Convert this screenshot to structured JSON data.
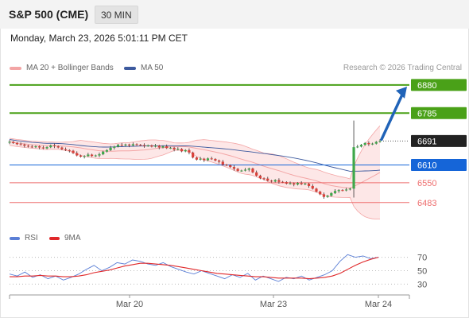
{
  "header": {
    "title": "S&P 500 (CME)",
    "timeframe": "30 MIN",
    "datetime": "Monday, March 23, 2026 5:01:11 PM CET"
  },
  "legend": {
    "bollinger_label": "MA 20 + Bollinger Bands",
    "ma50_label": "MA 50",
    "credit": "Research © 2026 Trading Central",
    "rsi_label": "RSI",
    "rsi_ma_label": "9MA"
  },
  "colors": {
    "candle_up": "#3fa84a",
    "candle_down": "#d9413a",
    "bollinger": "#f3a5a5",
    "bollinger_fill": "#fde7e7",
    "ma50": "#3d5a9e",
    "resistance": "#4aa118",
    "pivot": "#1565d8",
    "support": "#ee6e6e",
    "current": "#222222",
    "arrow": "#2063b8",
    "rsi": "#5b7fd6",
    "rsi_ma": "#e0282a"
  },
  "chart_data": [
    {
      "type": "line",
      "title": "S&P 500 (CME) 30 MIN",
      "x_ticks": [
        "Mar 20",
        "Mar 23",
        "Mar 24"
      ],
      "price_levels": [
        {
          "label": "6880",
          "value": 6880,
          "kind": "resistance"
        },
        {
          "label": "6785",
          "value": 6785,
          "kind": "resistance"
        },
        {
          "label": "6691",
          "value": 6691,
          "kind": "current"
        },
        {
          "label": "6610",
          "value": 6610,
          "kind": "pivot"
        },
        {
          "label": "6550",
          "value": 6550,
          "kind": "support"
        },
        {
          "label": "6483",
          "value": 6483,
          "kind": "support"
        }
      ],
      "series": [
        {
          "name": "MA 20 + Bollinger Bands",
          "values": []
        },
        {
          "name": "MA 50",
          "values": []
        }
      ],
      "close": [
        6688,
        6684,
        6680,
        6679,
        6675,
        6672,
        6670,
        6673,
        6669,
        6666,
        6670,
        6676,
        6673,
        6669,
        6663,
        6660,
        6658,
        6650,
        6642,
        6638,
        6640,
        6645,
        6640,
        6642,
        6646,
        6655,
        6660,
        6668,
        6672,
        6678,
        6676,
        6679,
        6676,
        6680,
        6678,
        6677,
        6674,
        6676,
        6672,
        6675,
        6669,
        6673,
        6667,
        6668,
        6662,
        6664,
        6656,
        6660,
        6652,
        6635,
        6628,
        6631,
        6626,
        6632,
        6630,
        6625,
        6621,
        6611,
        6609,
        6603,
        6597,
        6590,
        6591,
        6594,
        6598,
        6585,
        6574,
        6565,
        6564,
        6557,
        6554,
        6559,
        6553,
        6552,
        6547,
        6548,
        6544,
        6549,
        6545,
        6547,
        6539,
        6530,
        6520,
        6511,
        6502,
        6506,
        6515,
        6522,
        6525,
        6524,
        6527,
        6530,
        6670,
        6672,
        6678,
        6684,
        6680,
        6682,
        6688,
        6691
      ],
      "ylim": [
        6410,
        6920
      ]
    },
    {
      "type": "line",
      "title": "RSI",
      "yticks": [
        70,
        50,
        30
      ],
      "ylim": [
        15,
        85
      ],
      "series": [
        {
          "name": "RSI",
          "values": [
            45,
            42,
            48,
            40,
            44,
            38,
            42,
            36,
            40,
            45,
            52,
            58,
            50,
            55,
            62,
            60,
            66,
            64,
            60,
            58,
            62,
            56,
            52,
            48,
            45,
            50,
            46,
            42,
            38,
            44,
            40,
            46,
            36,
            42,
            38,
            34,
            40,
            38,
            42,
            36,
            40,
            44,
            50,
            64,
            74,
            70,
            72,
            68,
            70
          ]
        },
        {
          "name": "9MA",
          "values": [
            41,
            41,
            42,
            42,
            43,
            42,
            42,
            41,
            41,
            42,
            44,
            47,
            49,
            51,
            54,
            57,
            59,
            61,
            61,
            60,
            59,
            58,
            56,
            54,
            52,
            50,
            48,
            46,
            45,
            44,
            43,
            42,
            41,
            41,
            40,
            39,
            39,
            39,
            39,
            38,
            39,
            40,
            42,
            46,
            52,
            58,
            63,
            67,
            70
          ]
        }
      ]
    }
  ]
}
